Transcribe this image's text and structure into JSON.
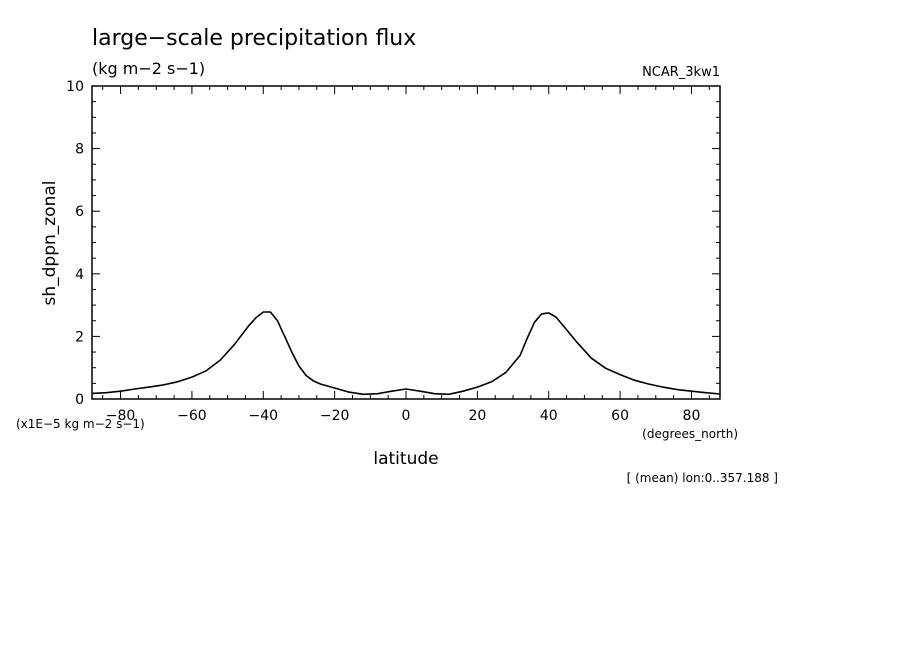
{
  "chart_data": {
    "type": "line",
    "title": "large−scale precipitation flux",
    "subtitle": "(kg m−2 s−1)",
    "source_label": "NCAR_3kw1",
    "xlabel": "latitude",
    "ylabel": "sh_dppn_zonal",
    "x_units": "(degrees_north)",
    "y_units": "(x1E−5 kg m−2 s−1)",
    "footnote": "[ (mean) lon:0..357.188 ]",
    "xlim": [
      -88,
      88
    ],
    "ylim": [
      0,
      10
    ],
    "x_ticks": [
      -80,
      -60,
      -40,
      -20,
      0,
      20,
      40,
      60,
      80
    ],
    "x_tick_labels": [
      "−80",
      "−60",
      "−40",
      "−20",
      "0",
      "20",
      "40",
      "60",
      "80"
    ],
    "y_ticks": [
      0,
      2,
      4,
      6,
      8,
      10
    ],
    "y_tick_labels": [
      "0",
      "2",
      "4",
      "6",
      "8",
      "10"
    ],
    "grid": false,
    "series": [
      {
        "color": "#000000",
        "x": [
          -88,
          -84,
          -80,
          -76,
          -72,
          -68,
          -64,
          -60,
          -56,
          -52,
          -48,
          -44,
          -42,
          -40,
          -38,
          -36,
          -34,
          -32,
          -30,
          -28,
          -26,
          -24,
          -20,
          -16,
          -12,
          -8,
          -4,
          0,
          4,
          8,
          12,
          16,
          20,
          24,
          28,
          32,
          34,
          36,
          38,
          40,
          42,
          44,
          48,
          52,
          56,
          60,
          64,
          68,
          72,
          76,
          80,
          84,
          88
        ],
        "y": [
          0.18,
          0.2,
          0.25,
          0.32,
          0.38,
          0.45,
          0.55,
          0.7,
          0.9,
          1.25,
          1.75,
          2.35,
          2.6,
          2.78,
          2.78,
          2.5,
          2.0,
          1.5,
          1.05,
          0.75,
          0.58,
          0.48,
          0.35,
          0.22,
          0.15,
          0.17,
          0.25,
          0.32,
          0.25,
          0.17,
          0.15,
          0.25,
          0.38,
          0.55,
          0.85,
          1.4,
          1.95,
          2.45,
          2.72,
          2.75,
          2.62,
          2.35,
          1.8,
          1.3,
          0.98,
          0.78,
          0.6,
          0.48,
          0.38,
          0.3,
          0.25,
          0.2,
          0.16
        ]
      }
    ]
  }
}
